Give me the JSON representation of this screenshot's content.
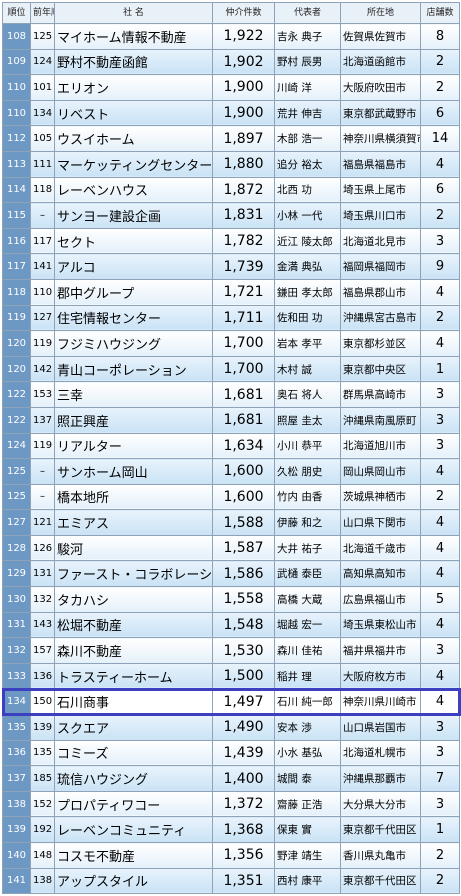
{
  "table": {
    "header": [
      "順位",
      "前年順位",
      "社 名",
      "仲介件数",
      "代表者",
      "所在地",
      "店舗数"
    ],
    "rows": [
      [
        "108",
        "125",
        "マイホーム情報不動産",
        "1,922",
        "吉永 典子",
        "佐賀県佐賀市",
        "8"
      ],
      [
        "109",
        "124",
        "野村不動産函館",
        "1,902",
        "野村 辰男",
        "北海道函館市",
        "2"
      ],
      [
        "110",
        "101",
        "エリオン",
        "1,900",
        "川崎 洋",
        "大阪府吹田市",
        "2"
      ],
      [
        "110",
        "134",
        "リベスト",
        "1,900",
        "荒井 伸吉",
        "東京都武蔵野市",
        "6"
      ],
      [
        "112",
        "105",
        "ウスイホーム",
        "1,897",
        "木部 浩一",
        "神奈川県横須賀市",
        "14"
      ],
      [
        "113",
        "111",
        "マーケッティングセンター",
        "1,880",
        "追分 裕太",
        "福島県福島市",
        "4"
      ],
      [
        "114",
        "118",
        "レーベンハウス",
        "1,872",
        "北西 功",
        "埼玉県上尾市",
        "6"
      ],
      [
        "115",
        "–",
        "サンヨー建設企画",
        "1,831",
        "小林 一代",
        "埼玉県川口市",
        "2"
      ],
      [
        "116",
        "117",
        "セクト",
        "1,782",
        "近江 陵太郎",
        "北海道北見市",
        "3"
      ],
      [
        "117",
        "141",
        "アルコ",
        "1,739",
        "金満 典弘",
        "福岡県福岡市",
        "9"
      ],
      [
        "118",
        "110",
        "郡中グループ",
        "1,721",
        "鎌田 孝太郎",
        "福島県郡山市",
        "4"
      ],
      [
        "119",
        "127",
        "住宅情報センター",
        "1,711",
        "佐和田 功",
        "沖縄県宮古島市",
        "2"
      ],
      [
        "120",
        "119",
        "フジミハウジング",
        "1,700",
        "岩本 孝平",
        "東京都杉並区",
        "4"
      ],
      [
        "120",
        "142",
        "青山コーポレーション",
        "1,700",
        "木村 誠",
        "東京都中央区",
        "1"
      ],
      [
        "122",
        "153",
        "三幸",
        "1,681",
        "奥石 将人",
        "群馬県高崎市",
        "3"
      ],
      [
        "122",
        "137",
        "照正興産",
        "1,681",
        "照屋 圭太",
        "沖縄県南風原町",
        "3"
      ],
      [
        "124",
        "119",
        "リアルター",
        "1,634",
        "小川 恭平",
        "北海道旭川市",
        "3"
      ],
      [
        "125",
        "–",
        "サンホーム岡山",
        "1,600",
        "久松 朋史",
        "岡山県岡山市",
        "4"
      ],
      [
        "125",
        "–",
        "橋本地所",
        "1,600",
        "竹内 由香",
        "茨城県神栖市",
        "2"
      ],
      [
        "127",
        "121",
        "エミアス",
        "1,588",
        "伊藤 和之",
        "山口県下関市",
        "4"
      ],
      [
        "128",
        "126",
        "駿河",
        "1,587",
        "大井 祐子",
        "北海道千歳市",
        "4"
      ],
      [
        "129",
        "131",
        "ファースト・コラボレーション",
        "1,586",
        "武樋 泰臣",
        "高知県高知市",
        "4"
      ],
      [
        "130",
        "132",
        "タカハシ",
        "1,558",
        "高橋 大蔵",
        "広島県福山市",
        "5"
      ],
      [
        "131",
        "143",
        "松堀不動産",
        "1,548",
        "堀越 宏一",
        "埼玉県東松山市",
        "4"
      ],
      [
        "132",
        "157",
        "森川不動産",
        "1,530",
        "森川 佳祐",
        "福井県福井市",
        "3"
      ],
      [
        "133",
        "136",
        "トラスティーホーム",
        "1,500",
        "稲井 理",
        "大阪府枚方市",
        "4"
      ],
      [
        "134",
        "150",
        "石川商事",
        "1,497",
        "石川 純一郎",
        "神奈川県川崎市",
        "4"
      ],
      [
        "135",
        "139",
        "スクエア",
        "1,490",
        "安本 渉",
        "山口県岩国市",
        "3"
      ],
      [
        "136",
        "135",
        "コミーズ",
        "1,439",
        "小水 基弘",
        "北海道札幌市",
        "3"
      ],
      [
        "137",
        "185",
        "琉信ハウジング",
        "1,400",
        "城間 泰",
        "沖縄県那覇市",
        "7"
      ],
      [
        "138",
        "152",
        "プロパティワコー",
        "1,372",
        "齋藤 正浩",
        "大分県大分市",
        "3"
      ],
      [
        "139",
        "192",
        "レーベンコミュニティ",
        "1,368",
        "保東 實",
        "東京都千代田区",
        "1"
      ],
      [
        "140",
        "148",
        "コスモ不動産",
        "1,356",
        "野津 靖生",
        "香川県丸亀市",
        "2"
      ],
      [
        "141",
        "138",
        "アップスタイル",
        "1,351",
        "西村 康平",
        "東京都千代田区",
        "2"
      ]
    ]
  }
}
